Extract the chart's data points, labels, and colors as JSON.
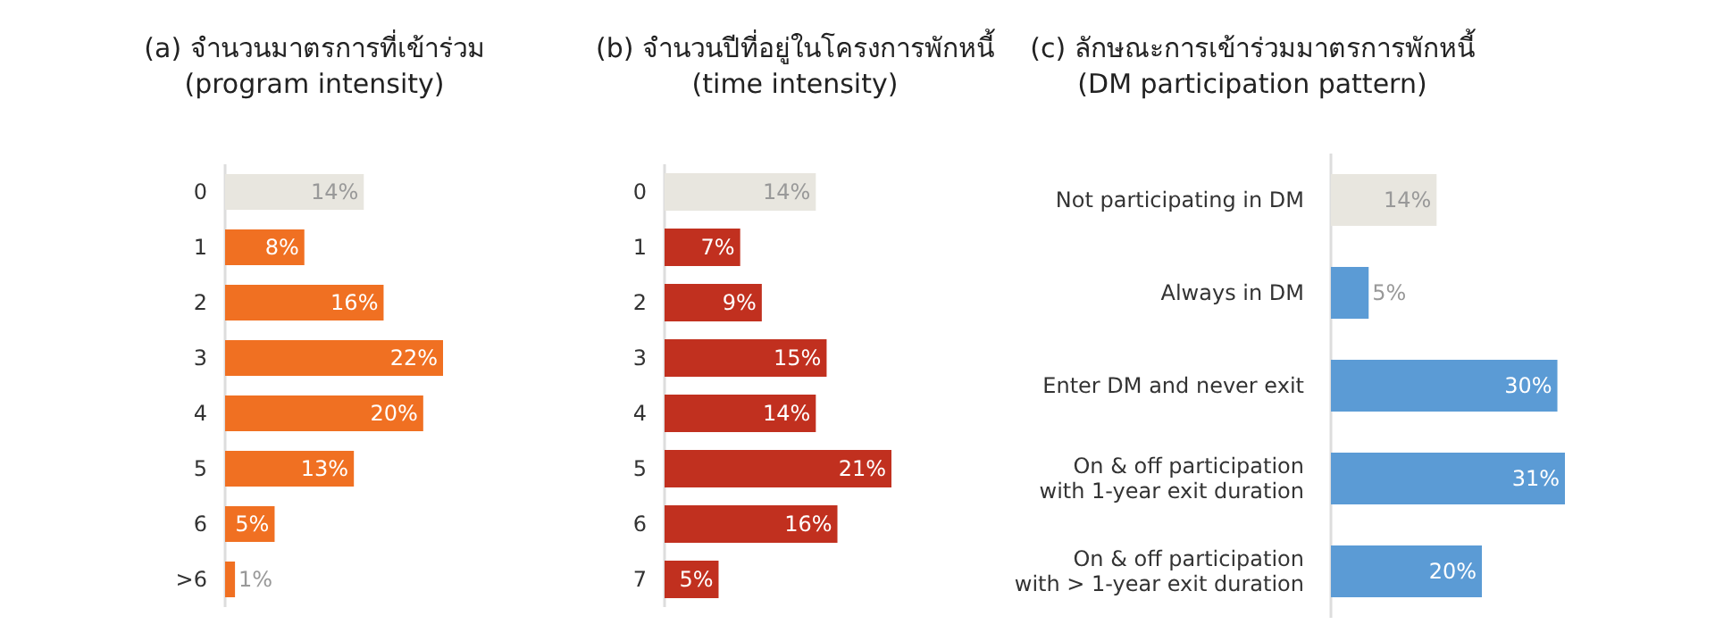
{
  "chart_data": [
    {
      "type": "bar",
      "orientation": "horizontal",
      "title": "(a) จำนวนมาตรการที่เข้าร่วม\n(program intensity)",
      "categories": [
        "0",
        "1",
        "2",
        "3",
        "4",
        "5",
        "6",
        ">6"
      ],
      "values": [
        14,
        8,
        16,
        22,
        20,
        13,
        5,
        1
      ],
      "value_labels": [
        "14%",
        "8%",
        "16%",
        "22%",
        "20%",
        "13%",
        "5%",
        "1%"
      ],
      "colors": [
        "#e8e6df",
        "#f07022",
        "#f07022",
        "#f07022",
        "#f07022",
        "#f07022",
        "#f07022",
        "#f07022"
      ]
    },
    {
      "type": "bar",
      "orientation": "horizontal",
      "title": "(b) จำนวนปีที่อยู่ในโครงการพักหนี้\n(time intensity)",
      "categories": [
        "0",
        "1",
        "2",
        "3",
        "4",
        "5",
        "6",
        "7"
      ],
      "values": [
        14,
        7,
        9,
        15,
        14,
        21,
        16,
        5
      ],
      "value_labels": [
        "14%",
        "7%",
        "9%",
        "15%",
        "14%",
        "21%",
        "16%",
        "5%"
      ],
      "colors": [
        "#e8e6df",
        "#c1301f",
        "#c1301f",
        "#c1301f",
        "#c1301f",
        "#c1301f",
        "#c1301f",
        "#c1301f"
      ]
    },
    {
      "type": "bar",
      "orientation": "horizontal",
      "title": "(c) ลักษณะการเข้าร่วมมาตรการพักหนี้\n(DM participation pattern)",
      "categories": [
        "Not participating in DM",
        "Always in DM",
        "Enter DM and never exit",
        "On & off participation with 1-year exit duration",
        "On & off participation with > 1-year exit duration"
      ],
      "values": [
        14,
        5,
        30,
        31,
        20
      ],
      "value_labels": [
        "14%",
        "5%",
        "30%",
        "31%",
        "20%"
      ],
      "colors": [
        "#e8e6df",
        "#5b9bd5",
        "#5b9bd5",
        "#5b9bd5",
        "#5b9bd5"
      ]
    }
  ]
}
